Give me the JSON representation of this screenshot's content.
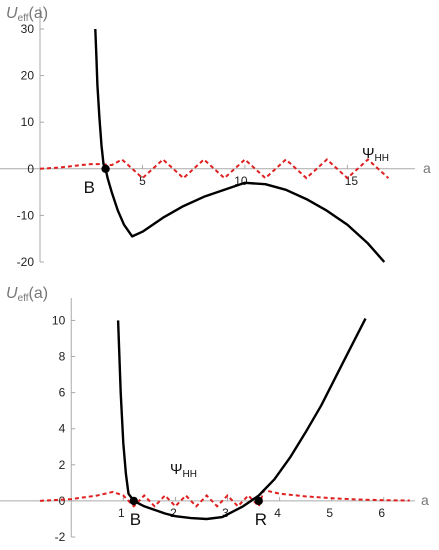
{
  "chart_data": [
    {
      "type": "line",
      "ylabel": {
        "main": "U",
        "sub": "eff",
        "arg": "(a)"
      },
      "xlabel": "a",
      "xlim": [
        0,
        18.3
      ],
      "ylim": [
        -20,
        33
      ],
      "xticks": [
        5,
        10,
        15
      ],
      "yticks": [
        -20,
        -10,
        0,
        10,
        20,
        30
      ],
      "series": [
        {
          "label": {
            "main": "Ψ",
            "sub": "HH"
          },
          "style": "dashed",
          "color": "#e02020",
          "x": [
            0,
            1,
            2,
            2.5,
            3.0,
            3.5,
            4,
            5,
            6,
            7,
            8,
            9,
            10,
            11,
            12,
            13,
            14,
            15,
            16,
            17
          ],
          "y": [
            0,
            0.3,
            0.8,
            1.0,
            1.0,
            0.8,
            2,
            -2,
            2,
            -2,
            2,
            -2,
            2,
            -2,
            2,
            -2,
            2,
            -2,
            2,
            -2
          ]
        },
        {
          "label": null,
          "style": "solid",
          "color": "#000000",
          "x": [
            2.7,
            2.75,
            2.8,
            2.9,
            3.0,
            3.1,
            3.2,
            3.3,
            3.5,
            3.8,
            4.1,
            4.5,
            5,
            6,
            7,
            8,
            9,
            10,
            11,
            12,
            13,
            14,
            15,
            16,
            16.8
          ],
          "y": [
            30,
            24,
            18,
            11,
            5,
            1,
            0,
            -2,
            -5,
            -9,
            -12,
            -14.5,
            -13.5,
            -10.5,
            -8,
            -6,
            -4.5,
            -3,
            -3.3,
            -4.5,
            -6.5,
            -9,
            -12,
            -16,
            -20
          ]
        }
      ],
      "points": [
        {
          "label": "B",
          "x": 3.2,
          "y": 0
        }
      ]
    },
    {
      "type": "line",
      "ylabel": {
        "main": "U",
        "sub": "eff",
        "arg": "(a)"
      },
      "xlabel": "a",
      "xlim": [
        -0.6,
        6.6
      ],
      "ylim": [
        -2,
        10.8
      ],
      "xticks": [
        1,
        2,
        3,
        4,
        5,
        6
      ],
      "yticks": [
        -2,
        0,
        2,
        4,
        6,
        8,
        10
      ],
      "series": [
        {
          "label": {
            "main": "Ψ",
            "sub": "HH"
          },
          "style": "dashed",
          "color": "#e02020",
          "x": [
            -0.6,
            0,
            0.5,
            0.8,
            1.0,
            1.2,
            1.4,
            1.6,
            1.8,
            2.0,
            2.2,
            2.4,
            2.6,
            2.8,
            3.0,
            3.2,
            3.4,
            3.6,
            3.7,
            4,
            4.5,
            5,
            5.5,
            6,
            6.5
          ],
          "y": [
            0,
            0.1,
            0.3,
            0.5,
            0.3,
            -0.3,
            0.3,
            -0.3,
            0.3,
            -0.3,
            0.3,
            -0.3,
            0.3,
            -0.3,
            0.3,
            -0.3,
            0.3,
            -0.3,
            0.6,
            0.4,
            0.25,
            0.15,
            0.08,
            0.04,
            0.02
          ]
        },
        {
          "label": null,
          "style": "solid",
          "color": "#000000",
          "x": [
            0.9,
            0.95,
            1.0,
            1.05,
            1.1,
            1.2,
            1.4,
            1.6,
            1.8,
            2.0,
            2.3,
            2.6,
            2.9,
            3.1,
            3.3,
            3.6,
            3.9,
            4.2,
            4.5,
            4.8,
            5.1,
            5.4,
            5.65
          ],
          "y": [
            10,
            6,
            3.2,
            1.5,
            0.4,
            0,
            -0.3,
            -0.5,
            -0.7,
            -0.85,
            -0.95,
            -1.0,
            -0.9,
            -0.6,
            -0.3,
            0.3,
            1.2,
            2.4,
            3.8,
            5.3,
            7.0,
            8.7,
            10.1
          ]
        }
      ],
      "points": [
        {
          "label": "B",
          "x": 1.2,
          "y": 0
        },
        {
          "label": "R",
          "x": 3.6,
          "y": 0
        }
      ]
    }
  ]
}
